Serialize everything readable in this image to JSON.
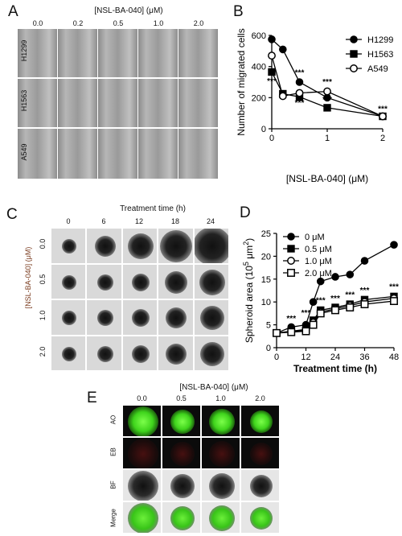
{
  "panels": {
    "a": {
      "letter": "A",
      "header": "[NSL-BA-040] (μM)",
      "doses": [
        "0.0",
        "0.2",
        "0.5",
        "1.0",
        "2.0"
      ],
      "rows": [
        "H1299",
        "H1563",
        "A549"
      ]
    },
    "b": {
      "letter": "B"
    },
    "c": {
      "letter": "C",
      "header": "Treatment time (h)",
      "times": [
        "0",
        "6",
        "12",
        "18",
        "24"
      ],
      "side_label": "[NSL-BA-040] (μM)",
      "doses": [
        "0.0",
        "0.5",
        "1.0",
        "2.0"
      ]
    },
    "d": {
      "letter": "D"
    },
    "e": {
      "letter": "E",
      "header": "[NSL-BA-040] (μM)",
      "doses": [
        "0.0",
        "0.5",
        "1.0",
        "2.0"
      ],
      "rows": [
        "AO",
        "EB",
        "BF",
        "Merge"
      ]
    }
  },
  "chart_data": [
    {
      "id": "B",
      "type": "line",
      "ylabel": "Number of migrated cells",
      "xlabel": "[NSL-BA-040] (μM)",
      "xlim": [
        0,
        2
      ],
      "ylim": [
        0,
        600
      ],
      "xticks": [
        "0",
        "1",
        "2"
      ],
      "yticks": [
        "0",
        "200",
        "400",
        "600"
      ],
      "legend_position": "top-right",
      "series": [
        {
          "name": "H1299",
          "marker": "filled-circle",
          "x": [
            0,
            0.2,
            0.5,
            1,
            2
          ],
          "y": [
            575,
            510,
            300,
            200,
            80
          ]
        },
        {
          "name": "H1563",
          "marker": "filled-square",
          "x": [
            0,
            0.2,
            0.5,
            1,
            2
          ],
          "y": [
            365,
            225,
            205,
            135,
            80
          ]
        },
        {
          "name": "A549",
          "marker": "open-circle",
          "x": [
            0,
            0.2,
            0.5,
            1,
            2
          ],
          "y": [
            470,
            210,
            230,
            240,
            80
          ]
        }
      ],
      "annotations": [
        {
          "text": "***",
          "x": 0,
          "y": 290
        },
        {
          "text": "***",
          "x": 0.5,
          "y": 345
        },
        {
          "text": "***",
          "x": 0.5,
          "y": 150
        },
        {
          "text": "***",
          "x": 1,
          "y": 285
        },
        {
          "text": "***",
          "x": 1,
          "y": 170
        },
        {
          "text": "***",
          "x": 2,
          "y": 110
        }
      ]
    },
    {
      "id": "D",
      "type": "line",
      "ylabel": "Spheroid area (10",
      "ylabel_sup": "5",
      "ylabel_tail": " μm",
      "ylabel_sup2": "2",
      "ylabel_end": ")",
      "xlabel": "Treatment time (h)",
      "xlim": [
        0,
        48
      ],
      "ylim": [
        0,
        25
      ],
      "xticks": [
        "0",
        "12",
        "24",
        "36",
        "48"
      ],
      "yticks": [
        "0",
        "5",
        "10",
        "15",
        "20",
        "25"
      ],
      "legend_position": "top-left",
      "series": [
        {
          "name": "0 μM",
          "marker": "filled-circle",
          "x": [
            0,
            6,
            12,
            15,
            18,
            24,
            30,
            36,
            48
          ],
          "y": [
            3.2,
            4.5,
            5,
            10,
            14.5,
            15.5,
            16,
            19,
            22.5
          ]
        },
        {
          "name": "0.5 μM",
          "marker": "filled-square",
          "x": [
            0,
            6,
            12,
            15,
            18,
            24,
            30,
            36,
            48
          ],
          "y": [
            3.2,
            3.6,
            4,
            6,
            8.2,
            8.8,
            9.5,
            10.5,
            11.2
          ]
        },
        {
          "name": "1.0 μM",
          "marker": "open-circle",
          "x": [
            0,
            6,
            12,
            15,
            18,
            24,
            30,
            36,
            48
          ],
          "y": [
            3.2,
            3.5,
            3.8,
            5.5,
            7.8,
            8.5,
            9.2,
            10,
            10.8
          ]
        },
        {
          "name": "2.0 μM",
          "marker": "open-square",
          "x": [
            0,
            6,
            12,
            15,
            18,
            24,
            30,
            36,
            48
          ],
          "y": [
            3.2,
            3.4,
            3.6,
            5,
            7.5,
            8.2,
            8.8,
            9.5,
            10.2
          ]
        }
      ],
      "annotations": [
        {
          "text": "***",
          "x": 6,
          "y": 5.8
        },
        {
          "text": "***",
          "x": 12,
          "y": 7
        },
        {
          "text": "***",
          "x": 18,
          "y": 9.8
        },
        {
          "text": "***",
          "x": 24,
          "y": 10.2
        },
        {
          "text": "***",
          "x": 30,
          "y": 11
        },
        {
          "text": "***",
          "x": 36,
          "y": 12
        },
        {
          "text": "***",
          "x": 48,
          "y": 12.8
        }
      ]
    }
  ]
}
